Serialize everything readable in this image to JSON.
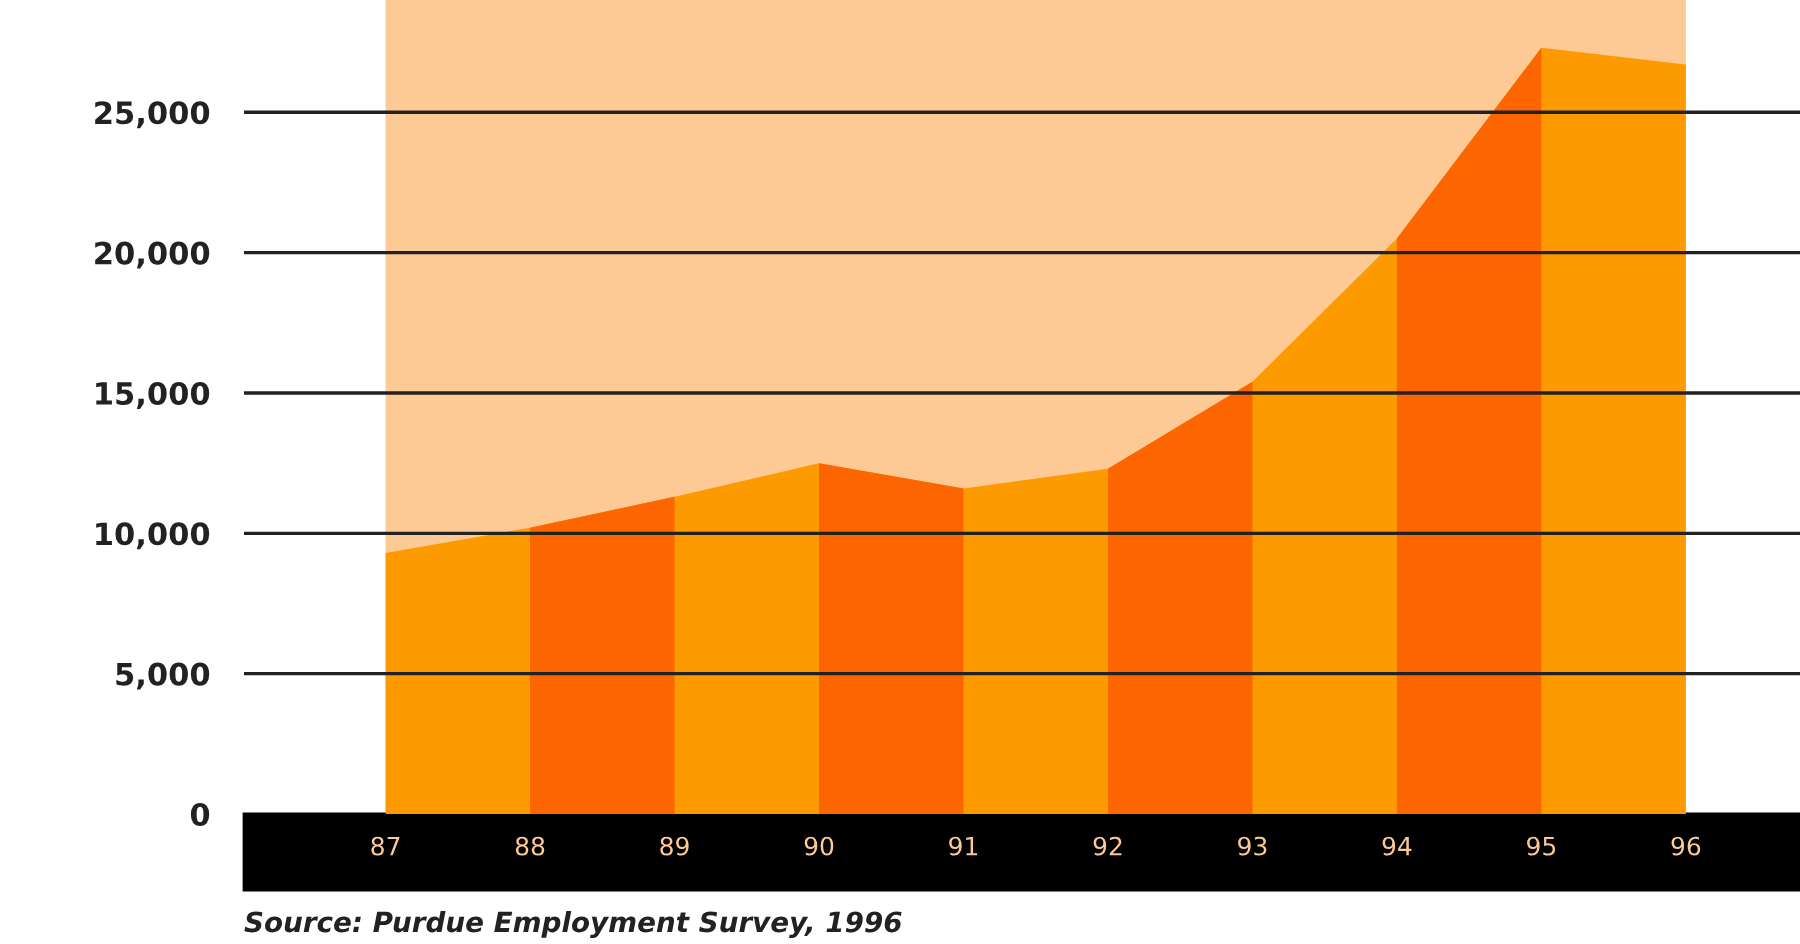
{
  "chart_data": {
    "type": "area",
    "categories": [
      "87",
      "88",
      "89",
      "90",
      "91",
      "92",
      "93",
      "94",
      "95",
      "96"
    ],
    "series": [
      {
        "color": "#fd9a00",
        "values": [
          9300,
          10200,
          11300,
          12500,
          11600,
          12300,
          15400,
          20500,
          27300,
          26700
        ]
      }
    ],
    "bands": [
      {
        "axis": "x",
        "from": "87",
        "to": "96",
        "color": "#fdca96"
      },
      {
        "axis": "x",
        "from": "88",
        "to": "89",
        "color": "#fd6500"
      },
      {
        "axis": "x",
        "from": "90",
        "to": "91",
        "color": "#fd6500"
      },
      {
        "axis": "x",
        "from": "92",
        "to": "93",
        "color": "#fd6500"
      },
      {
        "axis": "x",
        "from": "94",
        "to": "95",
        "color": "#fd6500"
      }
    ],
    "ylim": [
      0,
      29000
    ],
    "yticks": [
      {
        "value": 0,
        "label": "0"
      },
      {
        "value": 5000,
        "label": "5,000"
      },
      {
        "value": 10000,
        "label": "10,000"
      },
      {
        "value": 15000,
        "label": "15,000"
      },
      {
        "value": 20000,
        "label": "20,000"
      },
      {
        "value": 25000,
        "label": "25,000"
      }
    ],
    "grid": "y",
    "annotations": [
      "Source: Purdue Employment Survey, 1996"
    ]
  }
}
